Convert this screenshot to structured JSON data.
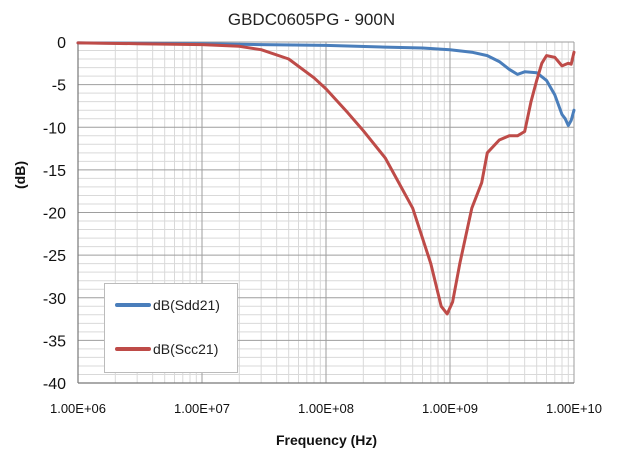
{
  "chart_data": {
    "type": "line",
    "title": "GBDC0605PG - 900N",
    "xlabel": "Frequency (Hz)",
    "ylabel": "(dB)",
    "xscale": "log",
    "xlim": [
      1000000,
      10000000000
    ],
    "ylim": [
      -40,
      0
    ],
    "xticks": [
      1000000,
      10000000,
      100000000,
      1000000000,
      10000000000
    ],
    "xtick_labels": [
      "1.00E+06",
      "1.00E+07",
      "1.00E+08",
      "1.00E+09",
      "1.00E+10"
    ],
    "yticks": [
      0,
      -5,
      -10,
      -15,
      -20,
      -25,
      -30,
      -35,
      -40
    ],
    "ytick_labels": [
      "0",
      "-5",
      "-10",
      "-15",
      "-20",
      "-25",
      "-30",
      "-35",
      "-40"
    ],
    "grid": true,
    "legend_position": "bottom-left",
    "series": [
      {
        "name": "dB(Sdd21)",
        "color": "#4a7ebb",
        "points": [
          [
            1000000,
            -0.1
          ],
          [
            10000000,
            -0.2
          ],
          [
            30000000,
            -0.3
          ],
          [
            100000000,
            -0.4
          ],
          [
            300000000,
            -0.6
          ],
          [
            600000000,
            -0.7
          ],
          [
            1000000000,
            -0.9
          ],
          [
            1500000000,
            -1.2
          ],
          [
            2000000000,
            -1.6
          ],
          [
            2500000000,
            -2.3
          ],
          [
            3000000000,
            -3.2
          ],
          [
            3500000000,
            -3.8
          ],
          [
            4000000000,
            -3.5
          ],
          [
            5000000000,
            -3.6
          ],
          [
            6000000000,
            -4.5
          ],
          [
            7000000000,
            -6.2
          ],
          [
            8000000000,
            -8.5
          ],
          [
            8500000000,
            -9.0
          ],
          [
            9000000000,
            -9.8
          ],
          [
            9500000000,
            -9.2
          ],
          [
            10000000000,
            -8.0
          ]
        ]
      },
      {
        "name": "dB(Scc21)",
        "color": "#be4b48",
        "points": [
          [
            1000000,
            -0.1
          ],
          [
            3000000,
            -0.2
          ],
          [
            10000000,
            -0.3
          ],
          [
            20000000,
            -0.5
          ],
          [
            30000000,
            -0.9
          ],
          [
            50000000,
            -2.0
          ],
          [
            80000000,
            -4.2
          ],
          [
            100000000,
            -5.5
          ],
          [
            150000000,
            -8.3
          ],
          [
            200000000,
            -10.4
          ],
          [
            300000000,
            -13.6
          ],
          [
            500000000,
            -19.5
          ],
          [
            700000000,
            -26.0
          ],
          [
            850000000,
            -31.0
          ],
          [
            950000000,
            -31.9
          ],
          [
            1050000000,
            -30.5
          ],
          [
            1200000000,
            -26.0
          ],
          [
            1500000000,
            -19.5
          ],
          [
            1800000000,
            -16.5
          ],
          [
            2000000000,
            -13.0
          ],
          [
            2500000000,
            -11.5
          ],
          [
            3000000000,
            -11.0
          ],
          [
            3500000000,
            -11.0
          ],
          [
            4000000000,
            -10.5
          ],
          [
            4500000000,
            -7.0
          ],
          [
            5000000000,
            -4.5
          ],
          [
            5500000000,
            -2.5
          ],
          [
            6000000000,
            -1.6
          ],
          [
            7000000000,
            -1.8
          ],
          [
            8000000000,
            -2.8
          ],
          [
            9000000000,
            -2.5
          ],
          [
            9500000000,
            -2.6
          ],
          [
            10000000000,
            -1.2
          ]
        ]
      }
    ]
  }
}
